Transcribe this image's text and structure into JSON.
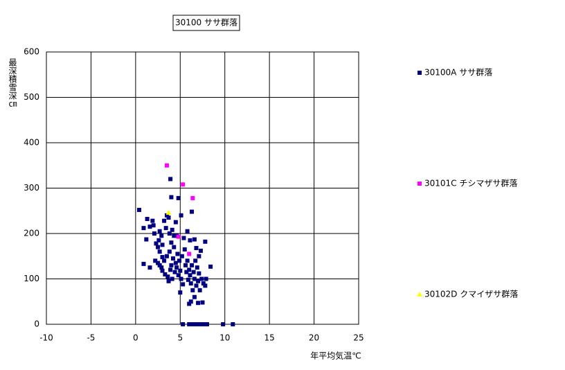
{
  "chart_data": {
    "type": "scatter",
    "title": "30100 ササ群落",
    "x_label": "年平均気温℃",
    "y_label": "最深積雪深㎝",
    "xlim": [
      -10,
      25
    ],
    "ylim": [
      0,
      600
    ],
    "xticks": [
      -10,
      -5,
      0,
      5,
      10,
      15,
      20,
      25
    ],
    "yticks": [
      0,
      100,
      200,
      300,
      400,
      500,
      600
    ],
    "grid": true,
    "series": [
      {
        "name": "30100A ササ群落",
        "color": "#000080",
        "marker": "square",
        "x": [
          0.4,
          0.9,
          1.2,
          1.3,
          0.9,
          1.6,
          1.6,
          1.9,
          2.0,
          2.1,
          2.3,
          2.5,
          2.7,
          2.9,
          3.0,
          3.2,
          3.4,
          3.5,
          3.7,
          3.9,
          4.0,
          4.1,
          4.3,
          4.5,
          4.8,
          5.1,
          5.4,
          5.8,
          6.1,
          6.3,
          6.6,
          6.8,
          7.1,
          7.3,
          7.8,
          8.4,
          2.2,
          2.5,
          2.7,
          2.9,
          3.0,
          3.2,
          3.3,
          3.5,
          3.6,
          3.7,
          3.8,
          3.9,
          4.0,
          4.1,
          4.2,
          4.3,
          4.4,
          4.5,
          4.6,
          4.7,
          4.8,
          4.9,
          5.0,
          5.1,
          5.2,
          5.3,
          5.5,
          5.6,
          5.7,
          5.8,
          5.9,
          6.0,
          6.1,
          6.2,
          6.3,
          6.4,
          6.5,
          6.6,
          6.7,
          6.8,
          6.9,
          7.0,
          7.1,
          7.2,
          7.4,
          7.6,
          7.8,
          7.9,
          6.0,
          6.2,
          6.6,
          7.0,
          7.5,
          5.0,
          3.8,
          3.0,
          2.7,
          2.6,
          4.0,
          4.6,
          5.3,
          6.0,
          6.3,
          6.6,
          6.8,
          7.1,
          7.4,
          7.7,
          8.0,
          9.8,
          10.9
        ],
        "values": [
          252,
          212,
          187,
          232,
          133,
          125,
          215,
          228,
          218,
          200,
          178,
          170,
          205,
          195,
          148,
          228,
          212,
          240,
          235,
          320,
          280,
          208,
          195,
          225,
          278,
          240,
          190,
          205,
          185,
          248,
          187,
          168,
          150,
          162,
          182,
          127,
          140,
          135,
          130,
          125,
          118,
          140,
          110,
          150,
          105,
          95,
          160,
          120,
          130,
          100,
          145,
          170,
          115,
          135,
          125,
          155,
          108,
          140,
          118,
          100,
          150,
          88,
          165,
          130,
          115,
          140,
          98,
          120,
          108,
          90,
          130,
          75,
          115,
          100,
          140,
          85,
          125,
          95,
          112,
          75,
          100,
          90,
          85,
          100,
          45,
          50,
          60,
          47,
          48,
          70,
          200,
          175,
          160,
          185,
          180,
          195,
          0,
          0,
          0,
          0,
          0,
          0,
          0,
          0,
          0,
          0,
          0
        ]
      },
      {
        "name": "30101C チシマザサ群落",
        "color": "#ff00ff",
        "marker": "square",
        "x": [
          3.5,
          5.3,
          6.4,
          4.8,
          6.0
        ],
        "values": [
          350,
          308,
          278,
          193,
          155
        ]
      },
      {
        "name": "30102D クマイザサ群落",
        "color": "#ffff00",
        "marker": "triangle",
        "x": [
          3.7
        ],
        "values": [
          246
        ]
      }
    ]
  }
}
